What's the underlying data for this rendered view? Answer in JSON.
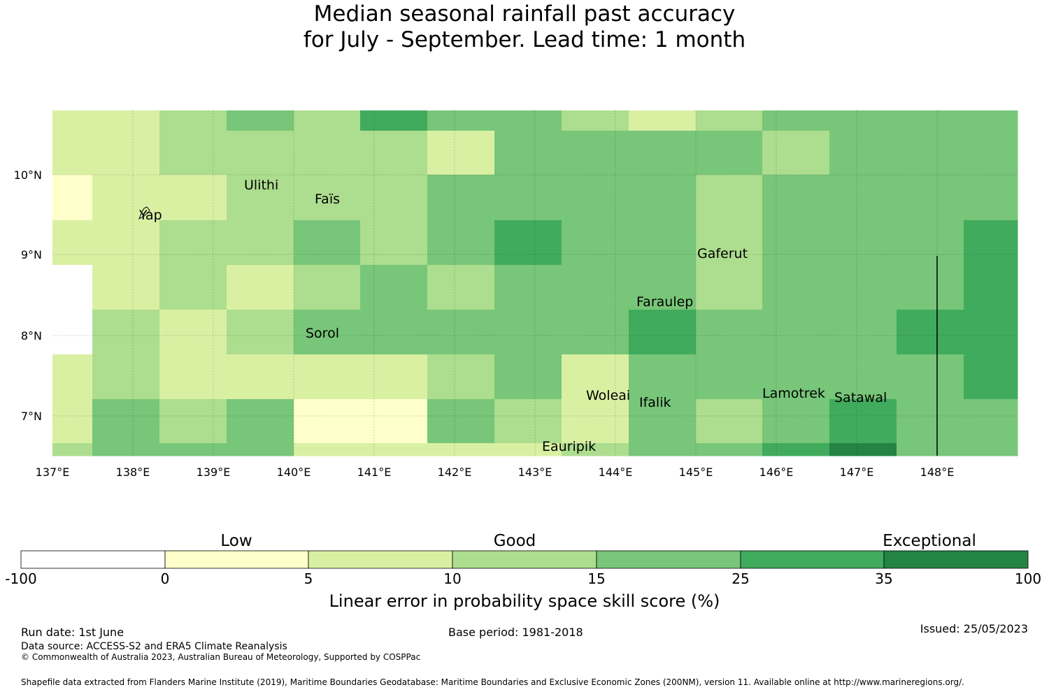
{
  "title": {
    "line1": "Median seasonal rainfall past accuracy",
    "line2": "for July - September. Lead time: 1 month"
  },
  "map": {
    "lon_labels": [
      "137°E",
      "138°E",
      "139°E",
      "140°E",
      "141°E",
      "142°E",
      "143°E",
      "144°E",
      "145°E",
      "146°E",
      "147°E",
      "148°E"
    ],
    "lat_labels": [
      "10°N",
      "9°N",
      "8°N",
      "7°N"
    ],
    "place_labels": [
      "Ulithi",
      "Faïs",
      "Yap",
      "Gaferut",
      "Faraulep",
      "Sorol",
      "Woleai",
      "Ifalik",
      "Lamotrek",
      "Satawal",
      "Eauripik"
    ],
    "palette": [
      "#ffffff",
      "#ffffcc",
      "#d9f0a3",
      "#addd8e",
      "#78c679",
      "#41ab5d",
      "#238443"
    ],
    "skill_class_grid": [
      [
        2,
        2,
        3,
        4,
        3,
        5,
        4,
        4,
        3,
        2,
        3,
        4,
        4,
        4,
        4
      ],
      [
        2,
        2,
        3,
        3,
        3,
        3,
        2,
        4,
        4,
        4,
        4,
        3,
        4,
        4,
        4
      ],
      [
        1,
        2,
        2,
        3,
        3,
        3,
        4,
        4,
        4,
        4,
        3,
        4,
        4,
        4,
        4
      ],
      [
        2,
        2,
        3,
        3,
        4,
        3,
        4,
        5,
        4,
        4,
        3,
        4,
        4,
        4,
        5
      ],
      [
        0,
        2,
        3,
        2,
        3,
        4,
        3,
        4,
        4,
        4,
        3,
        4,
        4,
        4,
        5
      ],
      [
        0,
        3,
        2,
        3,
        4,
        4,
        4,
        4,
        4,
        5,
        4,
        4,
        4,
        5,
        5
      ],
      [
        2,
        3,
        2,
        2,
        2,
        2,
        3,
        4,
        2,
        4,
        4,
        4,
        4,
        4,
        5
      ],
      [
        2,
        4,
        3,
        4,
        1,
        1,
        4,
        3,
        2,
        4,
        3,
        4,
        5,
        4,
        4
      ],
      [
        3,
        4,
        4,
        4,
        2,
        2,
        2,
        2,
        3,
        4,
        4,
        5,
        6,
        4,
        4
      ]
    ]
  },
  "legend": {
    "category_labels": [
      "Low",
      "Good",
      "Exceptional"
    ],
    "tick_labels": [
      "-100",
      "0",
      "5",
      "10",
      "15",
      "25",
      "35",
      "100"
    ],
    "axis_label": "Linear error in probability space skill score (%)"
  },
  "footer": {
    "run_date": "Run date: 1st June",
    "base_period": "Base period: 1981-2018",
    "issued": "Issued: 25/05/2023",
    "data_source": "Data source: ACCESS-S2 and ERA5 Climate Reanalysis",
    "copyright": "© Commonwealth of Australia 2023, Australian Bureau of Meteorology, Supported by COSPPac",
    "shapefile": "Shapefile data extracted from Flanders Marine Institute (2019), Maritime Boundaries Geodatabase: Maritime Boundaries and Exclusive Economic Zones (200NM), version 11. Available online at http://www.marineregions.org/."
  }
}
